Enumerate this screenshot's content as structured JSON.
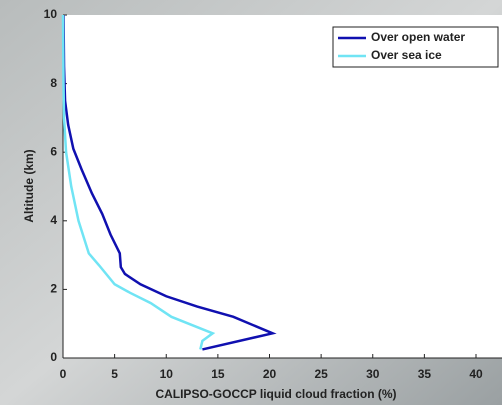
{
  "chart_data": {
    "type": "line",
    "xlabel": "CALIPSO-GOCCP liquid cloud fraction (%)",
    "ylabel": "Altitude (km)",
    "xlim": [
      0,
      40
    ],
    "xticks": [
      0,
      5,
      10,
      15,
      20,
      25,
      30,
      35,
      40
    ],
    "ylim": [
      0,
      10
    ],
    "yticks": [
      0,
      2,
      4,
      6,
      8,
      10
    ],
    "legend": "upper right",
    "series": [
      {
        "name": "Over open water",
        "color": "#1010b0",
        "x": [
          13.5,
          20.3,
          16.5,
          13,
          10,
          7.5,
          6,
          5.6,
          5.5,
          4.6,
          3.8,
          2.8,
          1.8,
          1,
          0.5,
          0.2,
          0.1,
          0.05
        ],
        "y": [
          0.25,
          0.72,
          1.2,
          1.5,
          1.8,
          2.15,
          2.45,
          2.65,
          3.05,
          3.6,
          4.2,
          4.8,
          5.5,
          6.1,
          6.8,
          7.5,
          8.5,
          10
        ]
      },
      {
        "name": "Over sea ice",
        "color": "#70e4f4",
        "x": [
          13.3,
          13.5,
          14.5,
          10.5,
          8.5,
          6.5,
          5,
          3.5,
          2.5,
          1.5,
          0.8,
          0.3,
          0.1,
          0.05,
          0
        ],
        "y": [
          0.25,
          0.5,
          0.72,
          1.2,
          1.6,
          1.9,
          2.15,
          2.7,
          3.05,
          4,
          5,
          6,
          7,
          8,
          10
        ]
      }
    ]
  }
}
